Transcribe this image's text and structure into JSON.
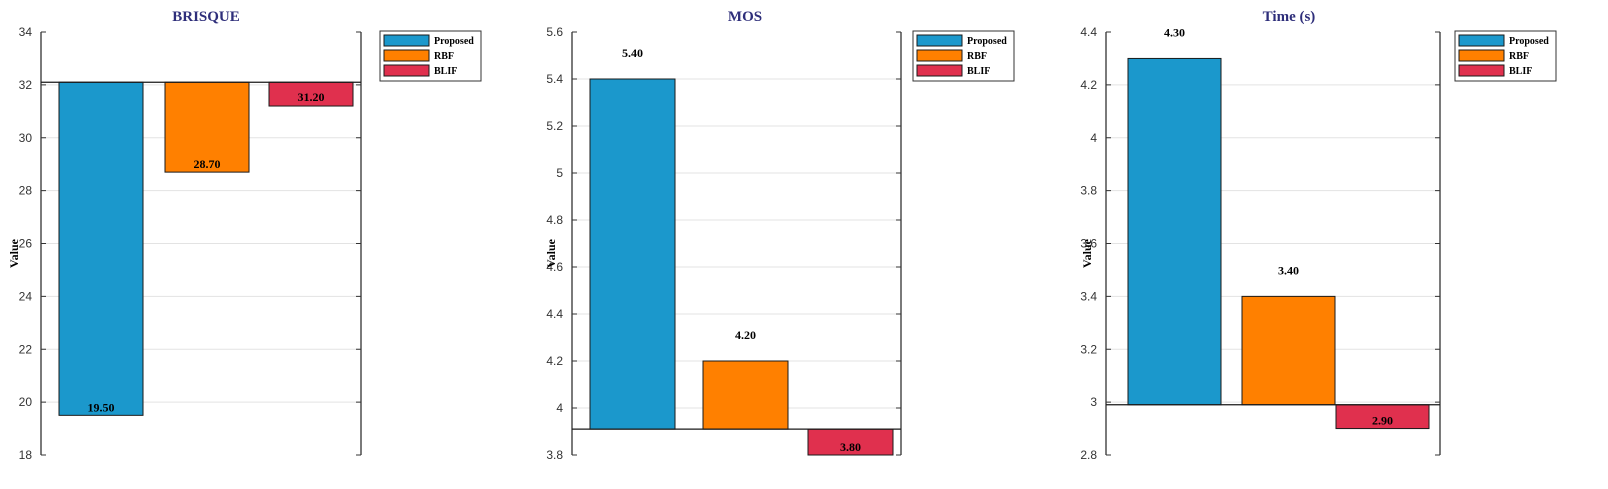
{
  "chart_data": [
    {
      "type": "bar",
      "title": "BRISQUE",
      "ylabel": "Value",
      "ylim": [
        18,
        34
      ],
      "yticks": [
        "18",
        "20",
        "22",
        "24",
        "26",
        "28",
        "30",
        "32",
        "34"
      ],
      "baseline": 32.1,
      "categories": [
        "Proposed",
        "RBF",
        "BLIF"
      ],
      "values": [
        19.5,
        28.7,
        31.2
      ],
      "labels": [
        "19.50",
        "28.70",
        "31.20"
      ],
      "grid": true,
      "legend": "outside-top-right"
    },
    {
      "type": "bar",
      "title": "MOS",
      "ylabel": "Value",
      "ylim": [
        3.8,
        5.6
      ],
      "yticks": [
        "3.8",
        "4",
        "4.2",
        "4.4",
        "4.6",
        "4.8",
        "5",
        "5.2",
        "5.4",
        "5.6"
      ],
      "baseline": 3.91,
      "categories": [
        "Proposed",
        "RBF",
        "BLIF"
      ],
      "values": [
        5.4,
        4.2,
        3.8
      ],
      "labels": [
        "5.40",
        "4.20",
        "3.80"
      ],
      "grid": true,
      "legend": "outside-top-right"
    },
    {
      "type": "bar",
      "title": "Time (s)",
      "ylabel": "Value",
      "ylim": [
        2.8,
        4.4
      ],
      "yticks": [
        "2.8",
        "3",
        "3.2",
        "3.4",
        "3.6",
        "3.8",
        "4",
        "4.2",
        "4.4"
      ],
      "baseline": 2.99,
      "categories": [
        "Proposed",
        "RBF",
        "BLIF"
      ],
      "values": [
        4.3,
        3.4,
        2.9
      ],
      "labels": [
        "4.30",
        "3.40",
        "2.90"
      ],
      "grid": true,
      "legend": "outside-top-right"
    }
  ],
  "legend_entries": [
    "Proposed",
    "RBF",
    "BLIF"
  ],
  "colors": {
    "Proposed": "#1b98cc",
    "RBF": "#ff8000",
    "BLIF": "#e0304e",
    "title": "#2e2e7a",
    "grid": "#e3e3e3",
    "axis": "#333333"
  }
}
